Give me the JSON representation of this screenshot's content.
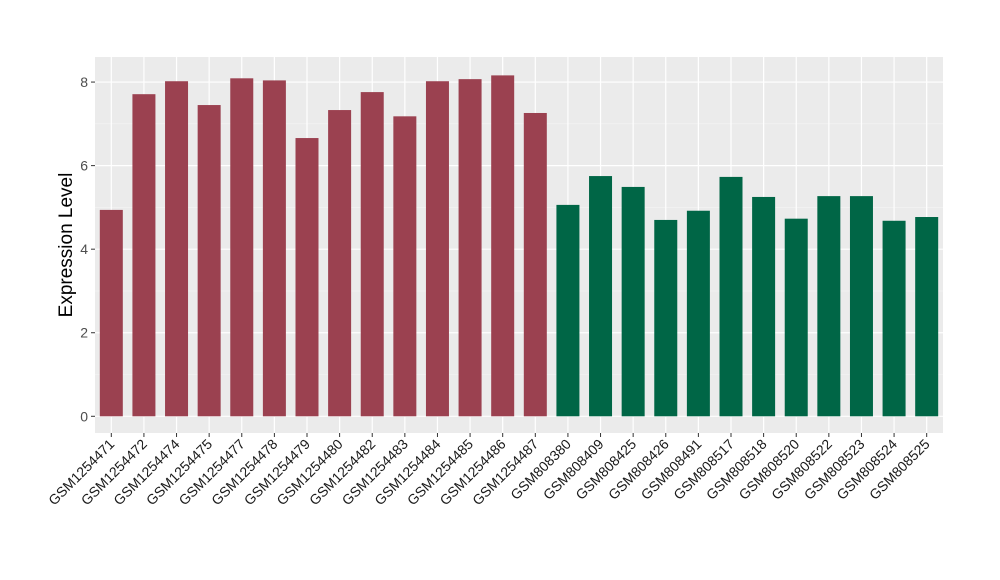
{
  "chart_data": {
    "type": "bar",
    "title": "",
    "xlabel": "",
    "ylabel": "Expression Level",
    "ylim": [
      -0.4,
      8.6
    ],
    "yticks": [
      0,
      2,
      4,
      6,
      8
    ],
    "grid": true,
    "categories": [
      "GSM1254471",
      "GSM1254472",
      "GSM1254474",
      "GSM1254475",
      "GSM1254477",
      "GSM1254478",
      "GSM1254479",
      "GSM1254480",
      "GSM1254482",
      "GSM1254483",
      "GSM1254484",
      "GSM1254485",
      "GSM1254486",
      "GSM1254487",
      "GSM808380",
      "GSM808409",
      "GSM808425",
      "GSM808426",
      "GSM808491",
      "GSM808517",
      "GSM808518",
      "GSM808520",
      "GSM808522",
      "GSM808523",
      "GSM808524",
      "GSM808525"
    ],
    "values": [
      4.94,
      7.71,
      8.02,
      7.45,
      8.09,
      8.04,
      6.66,
      7.33,
      7.76,
      7.18,
      8.02,
      8.07,
      8.16,
      7.26,
      5.06,
      5.75,
      5.49,
      4.7,
      4.92,
      5.73,
      5.25,
      4.73,
      5.27,
      5.27,
      4.68,
      4.77
    ],
    "groups": [
      0,
      0,
      0,
      0,
      0,
      0,
      0,
      0,
      0,
      0,
      0,
      0,
      0,
      0,
      1,
      1,
      1,
      1,
      1,
      1,
      1,
      1,
      1,
      1,
      1,
      1
    ],
    "colors": [
      "#9b4150",
      "#006646"
    ]
  }
}
